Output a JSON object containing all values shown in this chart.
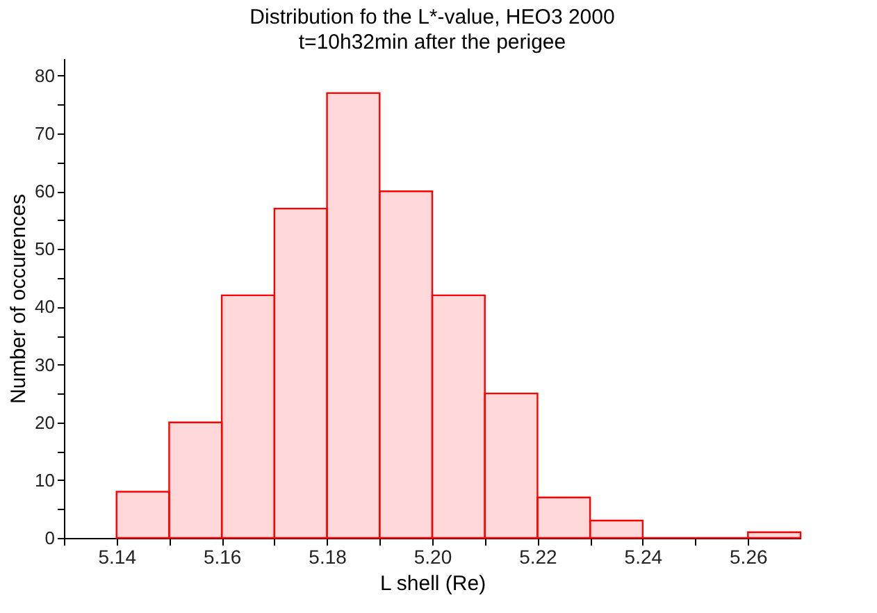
{
  "chart_data": {
    "type": "histogram",
    "title": "Distribution fo the L*-value, HEO3 2000",
    "subtitle": "t=10h32min after the perigee",
    "xlabel": "L shell (Re)",
    "ylabel": "Number of occurences",
    "bins": [
      5.14,
      5.15,
      5.16,
      5.17,
      5.18,
      5.19,
      5.2,
      5.21,
      5.22,
      5.23,
      5.24,
      5.25,
      5.26,
      5.27
    ],
    "values": [
      8,
      20,
      42,
      57,
      77,
      60,
      42,
      25,
      7,
      3,
      0,
      0,
      1
    ],
    "color": "#ff0000",
    "xlim": [
      5.13,
      5.27
    ],
    "ylim": [
      0,
      83
    ],
    "xticks": [
      {
        "value": 5.13,
        "label": null
      },
      {
        "value": 5.14,
        "label": "5.14"
      },
      {
        "value": 5.15,
        "label": null
      },
      {
        "value": 5.16,
        "label": "5.16"
      },
      {
        "value": 5.17,
        "label": null
      },
      {
        "value": 5.18,
        "label": "5.18"
      },
      {
        "value": 5.19,
        "label": null
      },
      {
        "value": 5.2,
        "label": "5.20"
      },
      {
        "value": 5.21,
        "label": null
      },
      {
        "value": 5.22,
        "label": "5.22"
      },
      {
        "value": 5.23,
        "label": null
      },
      {
        "value": 5.24,
        "label": "5.24"
      },
      {
        "value": 5.25,
        "label": null
      },
      {
        "value": 5.26,
        "label": "5.26"
      }
    ],
    "yticks": [
      0,
      {
        "value": 5,
        "label": null
      },
      10,
      {
        "value": 15,
        "label": null
      },
      20,
      {
        "value": 25,
        "label": null
      },
      30,
      {
        "value": 35,
        "label": null
      },
      40,
      {
        "value": 45,
        "label": null
      },
      50,
      {
        "value": 55,
        "label": null
      },
      60,
      {
        "value": 65,
        "label": null
      },
      70,
      {
        "value": 75,
        "label": null
      },
      80
    ],
    "grid": false
  }
}
